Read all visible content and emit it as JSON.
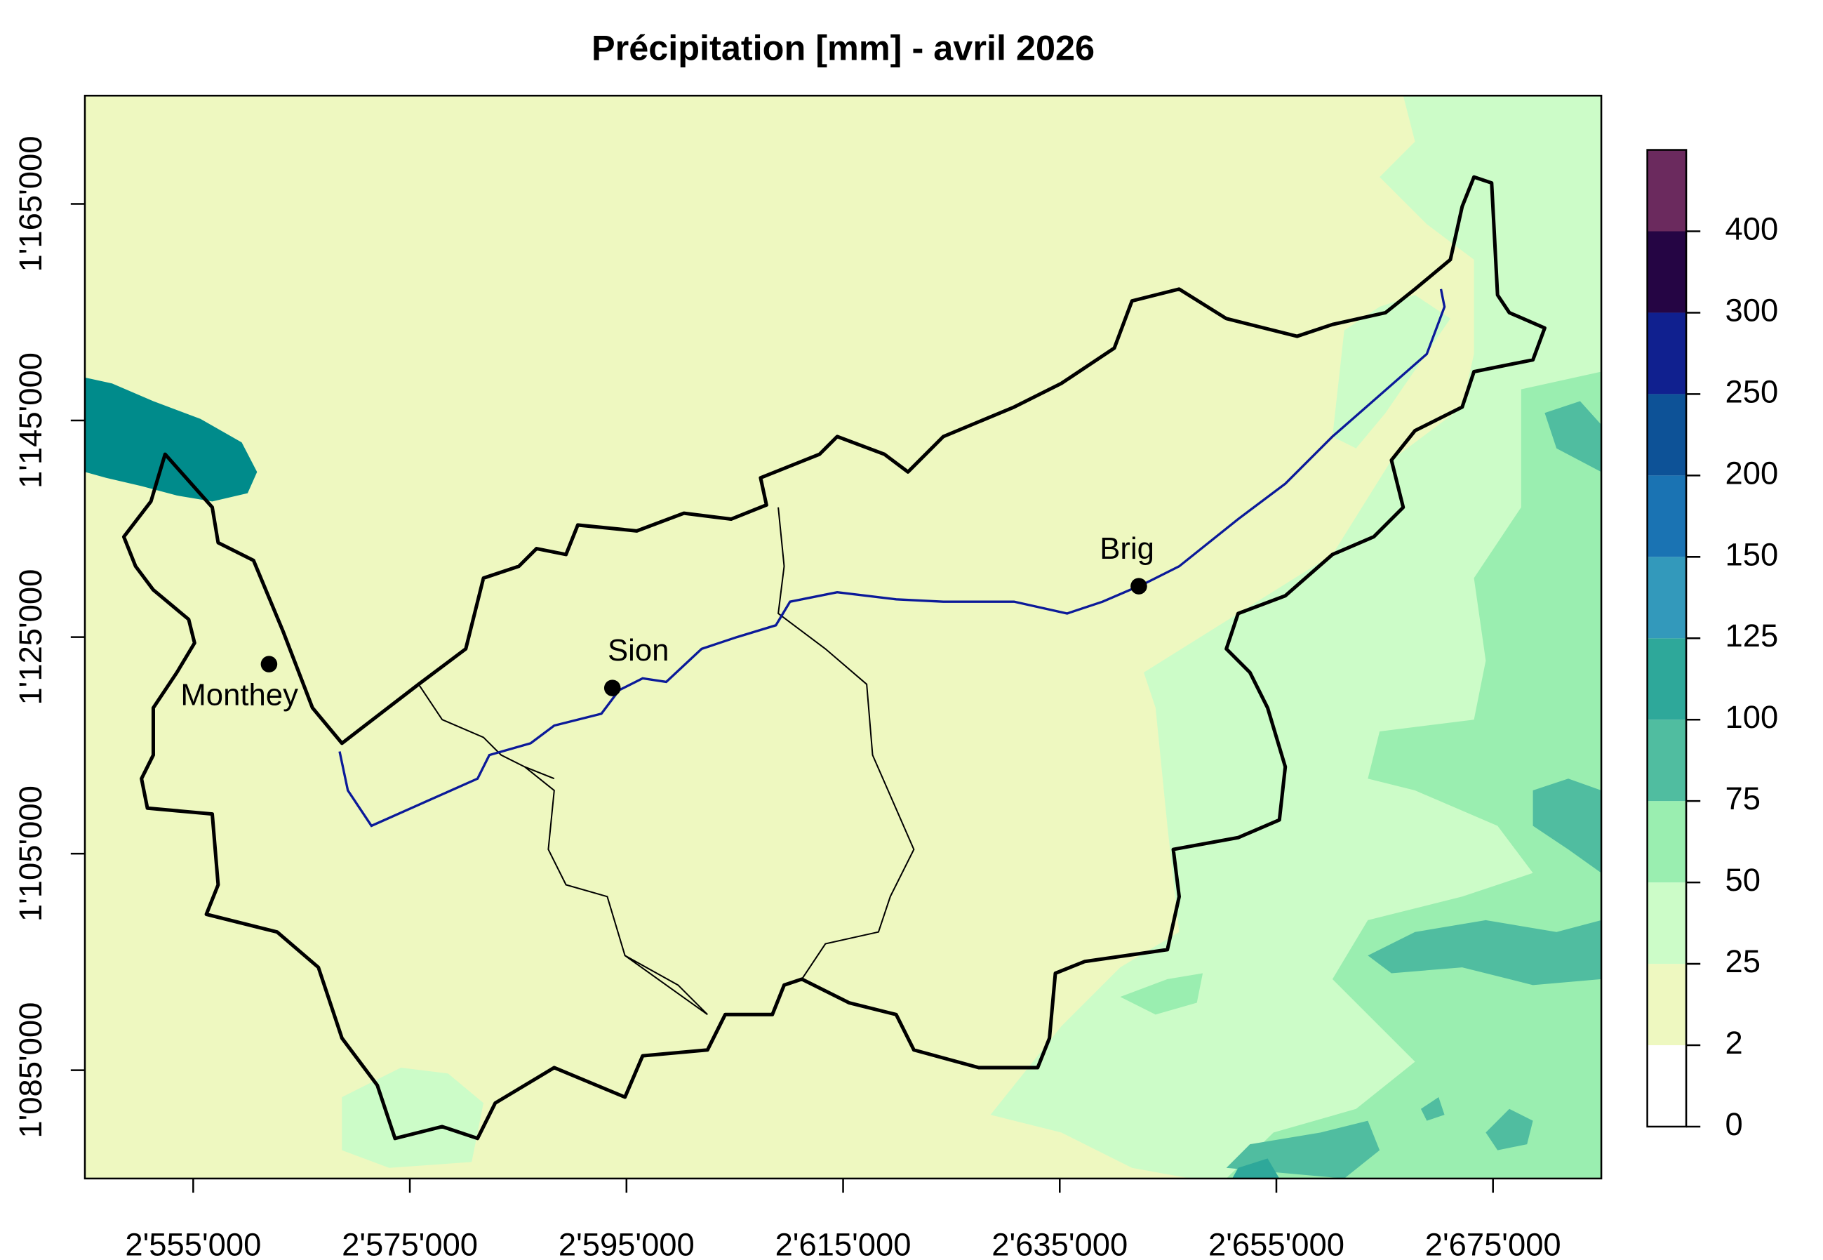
{
  "chart_data": {
    "type": "map",
    "title": "Précipitation [mm] - avril 2026",
    "xlim": [
      2545000,
      2685000
    ],
    "ylim": [
      1075000,
      1175000
    ],
    "xticks": [
      {
        "value": 2555000,
        "label": "2'555'000"
      },
      {
        "value": 2575000,
        "label": "2'575'000"
      },
      {
        "value": 2595000,
        "label": "2'595'000"
      },
      {
        "value": 2615000,
        "label": "2'615'000"
      },
      {
        "value": 2635000,
        "label": "2'635'000"
      },
      {
        "value": 2655000,
        "label": "2'655'000"
      },
      {
        "value": 2675000,
        "label": "2'675'000"
      }
    ],
    "yticks": [
      {
        "value": 1085000,
        "label": "1'085'000"
      },
      {
        "value": 1105000,
        "label": "1'105'000"
      },
      {
        "value": 1125000,
        "label": "1'125'000"
      },
      {
        "value": 1145000,
        "label": "1'145'000"
      },
      {
        "value": 1165000,
        "label": "1'165'000"
      }
    ],
    "points": [
      {
        "name": "Monthey",
        "x": 2562000,
        "y": 1122500
      },
      {
        "name": "Sion",
        "x": 2593700,
        "y": 1120300
      },
      {
        "name": "Brig",
        "x": 2642300,
        "y": 1129700
      }
    ],
    "legend": {
      "ticks": [
        0,
        2,
        25,
        50,
        75,
        100,
        125,
        150,
        200,
        250,
        300,
        400
      ],
      "colors": [
        "#ffffff",
        "#eef8c0",
        "#ccfcc8",
        "#9aeeb0",
        "#50bda0",
        "#2ea89a",
        "#3399bb",
        "#1a73b3",
        "#0d5297",
        "#10208f",
        "#250544",
        "#6b2a5e"
      ]
    }
  }
}
